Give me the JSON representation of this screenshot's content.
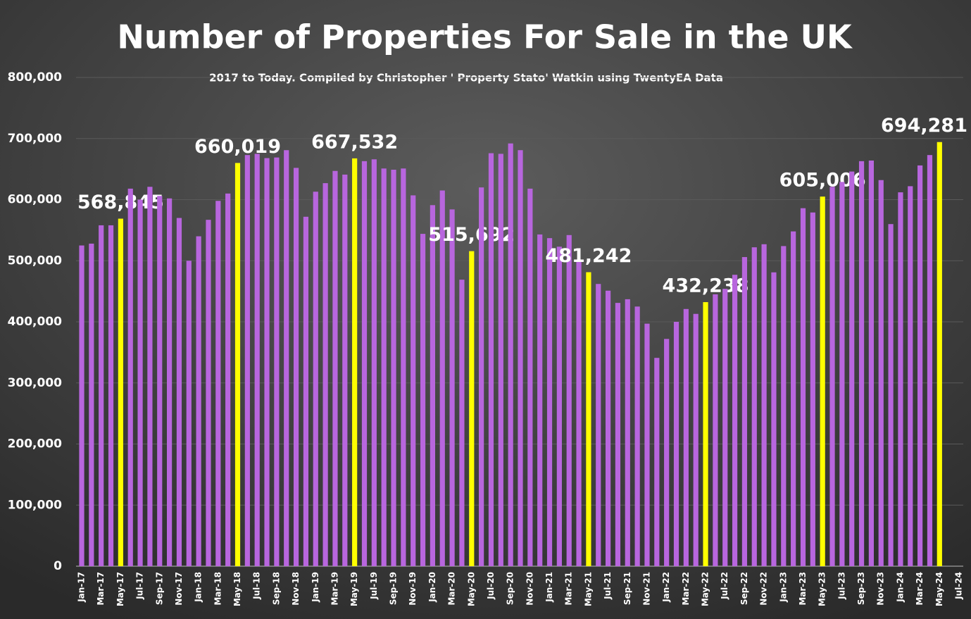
{
  "chart_data": {
    "type": "bar",
    "title": "Number of Properties For Sale in the UK",
    "subtitle": "2017 to Today. Compiled by Christopher ' Property Stato' Watkin using TwentyEA Data",
    "categories": [
      "Jan-17",
      null,
      "Mar-17",
      null,
      "May-17",
      null,
      "Jul-17",
      null,
      "Sep-17",
      null,
      "Nov-17",
      null,
      "Jan-18",
      null,
      "Mar-18",
      null,
      "May-18",
      null,
      "Jul-18",
      null,
      "Sep-18",
      null,
      "Nov-18",
      null,
      "Jan-19",
      null,
      "Mar-19",
      null,
      "May-19",
      null,
      "Jul-19",
      null,
      "Sep-19",
      null,
      "Nov-19",
      null,
      "Jan-20",
      null,
      "Mar-20",
      null,
      "May-20",
      null,
      "Jul-20",
      null,
      "Sep-20",
      null,
      "Nov-20",
      null,
      "Jan-21",
      null,
      "Mar-21",
      null,
      "May-21",
      null,
      "Jul-21",
      null,
      "Sep-21",
      null,
      "Nov-21",
      null,
      "Jan-22",
      null,
      "Mar-22",
      null,
      "May-22",
      null,
      "Jul-22",
      null,
      "Sep-22",
      null,
      "Nov-22",
      null,
      "Jan-23",
      null,
      "Mar-23",
      null,
      "May-23",
      null,
      "Jul-23",
      null,
      "Sep-23",
      null,
      "Nov-23",
      null,
      "Jan-24",
      null,
      "Mar-24",
      null,
      "May-24",
      null,
      "Jul-24"
    ],
    "values": [
      525000,
      528000,
      558000,
      558000,
      568845,
      618000,
      600000,
      621000,
      606000,
      602000,
      570000,
      500000,
      540000,
      567000,
      598000,
      610000,
      660019,
      673000,
      675000,
      668000,
      669000,
      681000,
      652000,
      572000,
      613000,
      627000,
      647000,
      641000,
      667532,
      663000,
      666000,
      651000,
      649000,
      651000,
      607000,
      544000,
      591000,
      615000,
      584000,
      469000,
      515692,
      620000,
      676000,
      675000,
      692000,
      681000,
      618000,
      543000,
      537000,
      523000,
      542000,
      500000,
      481242,
      462000,
      451000,
      431000,
      437000,
      425000,
      397000,
      341000,
      372000,
      400000,
      421000,
      413000,
      432238,
      445000,
      454000,
      477000,
      506000,
      522000,
      527000,
      481000,
      524000,
      548000,
      586000,
      579000,
      605006,
      621000,
      629000,
      646000,
      663000,
      664000,
      632000,
      560000,
      612000,
      622000,
      656000,
      673000,
      694281,
      null,
      null
    ],
    "value_labels": [
      null,
      null,
      null,
      null,
      "568,845",
      null,
      null,
      null,
      null,
      null,
      null,
      null,
      null,
      null,
      null,
      null,
      "660,019",
      null,
      null,
      null,
      null,
      null,
      null,
      null,
      null,
      null,
      null,
      null,
      "667,532",
      null,
      null,
      null,
      null,
      null,
      null,
      null,
      null,
      null,
      null,
      null,
      "515,692",
      null,
      null,
      null,
      null,
      null,
      null,
      null,
      null,
      null,
      null,
      null,
      "481,242",
      null,
      null,
      null,
      null,
      null,
      null,
      null,
      null,
      null,
      null,
      null,
      "432,238",
      null,
      null,
      null,
      null,
      null,
      null,
      null,
      null,
      null,
      null,
      null,
      "605,006",
      null,
      null,
      null,
      null,
      null,
      null,
      null,
      null,
      null,
      null,
      null,
      "694,281",
      null,
      null
    ],
    "color": "#b866de",
    "highlight_color": "#ffff00",
    "ylim": [
      0,
      800000
    ],
    "yticks": [
      0,
      {
        "value": 100000,
        "label": "100,000"
      },
      {
        "value": 200000,
        "label": "200,000"
      },
      {
        "value": 300000,
        "label": "300,000"
      },
      {
        "value": 400000,
        "label": "400,000"
      },
      {
        "value": 500000,
        "label": "500,000"
      },
      {
        "value": 600000,
        "label": "600,000"
      },
      {
        "value": 700000,
        "label": "700,000"
      },
      {
        "value": 800000,
        "label": "800,000"
      }
    ],
    "grid": true
  }
}
